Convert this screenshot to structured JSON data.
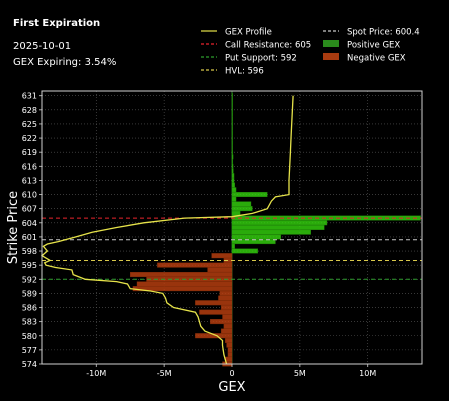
{
  "info": {
    "title": "First Expiration",
    "date": "2025-10-01",
    "gex_expiring": "GEX Expiring: 3.54%"
  },
  "chart_data": {
    "type": "bar",
    "orientation": "horizontal",
    "xlabel": "GEX",
    "ylabel": "Strike Price",
    "xlim": [
      -14000000,
      14000000
    ],
    "ylim": [
      574,
      632
    ],
    "x_ticks": [
      {
        "value": -10000000,
        "label": "-10M"
      },
      {
        "value": -5000000,
        "label": "-5M"
      },
      {
        "value": 0,
        "label": "0"
      },
      {
        "value": 5000000,
        "label": "5M"
      },
      {
        "value": 10000000,
        "label": "10M"
      }
    ],
    "y_ticks": [
      574,
      577,
      580,
      583,
      586,
      589,
      592,
      595,
      598,
      601,
      604,
      607,
      610,
      613,
      616,
      619,
      622,
      625,
      628,
      631
    ],
    "grid": true,
    "legend": {
      "placement": "top",
      "entries": [
        {
          "label": "GEX Profile",
          "kind": "line",
          "color": "#e6e34a"
        },
        {
          "label": "Spot Price: 600.4",
          "kind": "dashed",
          "color": "#c8c8c8"
        },
        {
          "label": "Call Resistance: 605",
          "kind": "dashed",
          "color": "#e8242d"
        },
        {
          "label": "Positive GEX",
          "kind": "patch",
          "color": "#2a8a1c"
        },
        {
          "label": "Put Support: 592",
          "kind": "dashed",
          "color": "#2e9e2e"
        },
        {
          "label": "Negative GEX",
          "kind": "patch",
          "color": "#a83b10"
        },
        {
          "label": "HVL: 596",
          "kind": "dashed",
          "color": "#d8c84a"
        }
      ]
    },
    "levels": [
      {
        "name": "Spot Price",
        "value": 600.4,
        "color": "#c8c8c8"
      },
      {
        "name": "Call Resistance",
        "value": 605,
        "color": "#e8242d"
      },
      {
        "name": "Put Support",
        "value": 592,
        "color": "#2e9e2e"
      },
      {
        "name": "HVL",
        "value": 596,
        "color": "#d8c84a"
      }
    ],
    "bars": [
      {
        "strike": 631,
        "value": 5000
      },
      {
        "strike": 630,
        "value": 5000
      },
      {
        "strike": 629,
        "value": 5000
      },
      {
        "strike": 628,
        "value": 10000
      },
      {
        "strike": 627,
        "value": 10000
      },
      {
        "strike": 626,
        "value": 10000
      },
      {
        "strike": 625,
        "value": 15000
      },
      {
        "strike": 624,
        "value": 15000
      },
      {
        "strike": 623,
        "value": 20000
      },
      {
        "strike": 622,
        "value": 20000
      },
      {
        "strike": 621,
        "value": 30000
      },
      {
        "strike": 620,
        "value": 40000
      },
      {
        "strike": 619,
        "value": 50000
      },
      {
        "strike": 618,
        "value": 80000
      },
      {
        "strike": 617,
        "value": 60000
      },
      {
        "strike": 616,
        "value": 80000
      },
      {
        "strike": 615,
        "value": 100000
      },
      {
        "strike": 614,
        "value": 150000
      },
      {
        "strike": 613,
        "value": 150000
      },
      {
        "strike": 612,
        "value": 200000
      },
      {
        "strike": 611,
        "value": 300000
      },
      {
        "strike": 610,
        "value": 2600000
      },
      {
        "strike": 609,
        "value": 300000
      },
      {
        "strike": 608,
        "value": 1400000
      },
      {
        "strike": 607,
        "value": 1500000
      },
      {
        "strike": 606,
        "value": 600000
      },
      {
        "strike": 605,
        "value": 13900000
      },
      {
        "strike": 604,
        "value": 7000000
      },
      {
        "strike": 603,
        "value": 6800000
      },
      {
        "strike": 602,
        "value": 5800000
      },
      {
        "strike": 601,
        "value": 3600000
      },
      {
        "strike": 600,
        "value": 3200000
      },
      {
        "strike": 599,
        "value": 200000
      },
      {
        "strike": 598,
        "value": 1900000
      },
      {
        "strike": 597,
        "value": -1500000
      },
      {
        "strike": 596,
        "value": -600000
      },
      {
        "strike": 595,
        "value": -5500000
      },
      {
        "strike": 594,
        "value": -1800000
      },
      {
        "strike": 593,
        "value": -7500000
      },
      {
        "strike": 592,
        "value": -6300000
      },
      {
        "strike": 591,
        "value": -7000000
      },
      {
        "strike": 590,
        "value": -7300000
      },
      {
        "strike": 589,
        "value": -900000
      },
      {
        "strike": 588,
        "value": -1000000
      },
      {
        "strike": 587,
        "value": -2700000
      },
      {
        "strike": 586,
        "value": -800000
      },
      {
        "strike": 585,
        "value": -2400000
      },
      {
        "strike": 584,
        "value": -700000
      },
      {
        "strike": 583,
        "value": -1600000
      },
      {
        "strike": 582,
        "value": -600000
      },
      {
        "strike": 581,
        "value": -800000
      },
      {
        "strike": 580,
        "value": -2700000
      },
      {
        "strike": 579,
        "value": -500000
      },
      {
        "strike": 578,
        "value": -400000
      },
      {
        "strike": 577,
        "value": -300000
      },
      {
        "strike": 576,
        "value": -300000
      },
      {
        "strike": 575,
        "value": -500000
      },
      {
        "strike": 574,
        "value": -700000
      }
    ],
    "profile": [
      {
        "strike": 631,
        "value": 4500000
      },
      {
        "strike": 628,
        "value": 4450000
      },
      {
        "strike": 625,
        "value": 4400000
      },
      {
        "strike": 622,
        "value": 4350000
      },
      {
        "strike": 619,
        "value": 4300000
      },
      {
        "strike": 616,
        "value": 4250000
      },
      {
        "strike": 613,
        "value": 4200000
      },
      {
        "strike": 610,
        "value": 4200000
      },
      {
        "strike": 609.5,
        "value": 3200000
      },
      {
        "strike": 608.6,
        "value": 2900000
      },
      {
        "strike": 607,
        "value": 2600000
      },
      {
        "strike": 606,
        "value": 1500000
      },
      {
        "strike": 605.3,
        "value": 0
      },
      {
        "strike": 605,
        "value": -3500000
      },
      {
        "strike": 604,
        "value": -6500000
      },
      {
        "strike": 603,
        "value": -8500000
      },
      {
        "strike": 602,
        "value": -10300000
      },
      {
        "strike": 601,
        "value": -11500000
      },
      {
        "strike": 600,
        "value": -12800000
      },
      {
        "strike": 599.5,
        "value": -13600000
      },
      {
        "strike": 599,
        "value": -13900000
      },
      {
        "strike": 598,
        "value": -13600000
      },
      {
        "strike": 597,
        "value": -14000000
      },
      {
        "strike": 596,
        "value": -13400000
      },
      {
        "strike": 595.5,
        "value": -13800000
      },
      {
        "strike": 595,
        "value": -13700000
      },
      {
        "strike": 594.5,
        "value": -13000000
      },
      {
        "strike": 594,
        "value": -11800000
      },
      {
        "strike": 593,
        "value": -11700000
      },
      {
        "strike": 592,
        "value": -10800000
      },
      {
        "strike": 591.5,
        "value": -8500000
      },
      {
        "strike": 591,
        "value": -7700000
      },
      {
        "strike": 590,
        "value": -7500000
      },
      {
        "strike": 589.5,
        "value": -6000000
      },
      {
        "strike": 589,
        "value": -5100000
      },
      {
        "strike": 588,
        "value": -4900000
      },
      {
        "strike": 587,
        "value": -4800000
      },
      {
        "strike": 586,
        "value": -4300000
      },
      {
        "strike": 585,
        "value": -2700000
      },
      {
        "strike": 584,
        "value": -2500000
      },
      {
        "strike": 583,
        "value": -2400000
      },
      {
        "strike": 582,
        "value": -2300000
      },
      {
        "strike": 581,
        "value": -2000000
      },
      {
        "strike": 580,
        "value": -1100000
      },
      {
        "strike": 579,
        "value": -700000
      },
      {
        "strike": 578,
        "value": -700000
      },
      {
        "strike": 577,
        "value": -650000
      },
      {
        "strike": 576,
        "value": -600000
      },
      {
        "strike": 575,
        "value": -500000
      },
      {
        "strike": 574,
        "value": -400000
      }
    ]
  }
}
